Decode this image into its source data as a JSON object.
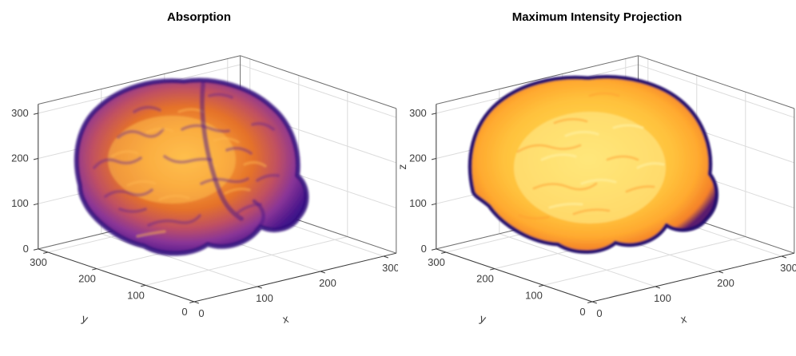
{
  "figure": {
    "background": "#ffffff"
  },
  "axes": {
    "lim": [
      0,
      320
    ],
    "grid_color": "#dcdcdc",
    "box_color": "#6e6e6e",
    "axis_color": "#3c3c3c",
    "text_color": "#3c3c3c",
    "tick_font_size": 13,
    "label_font_size": 14
  },
  "chart_data": [
    {
      "type": "3d-volume-rendering",
      "title": "Absorption",
      "xlabel": "x",
      "ylabel": "y",
      "zlabel": "",
      "x_ticks": [
        0,
        100,
        200,
        300
      ],
      "y_ticks": [
        0,
        100,
        200,
        300
      ],
      "z_ticks": [
        0,
        100,
        200,
        300
      ],
      "xlim": [
        0,
        320
      ],
      "ylim": [
        0,
        320
      ],
      "zlim": [
        0,
        320
      ],
      "grid": true,
      "content": "Human brain MRI volume rendered with an absorption transfer function: warm orange interior, violet-blue surface boundary, visible cortical folds and cerebellum",
      "colormap": [
        "#41128a",
        "#8a3597",
        "#bf4f63",
        "#e4712a",
        "#f69a33",
        "#fdbc49"
      ]
    },
    {
      "type": "3d-volume-rendering",
      "title": "Maximum Intensity Projection",
      "xlabel": "x",
      "ylabel": "y",
      "zlabel": "z",
      "x_ticks": [
        0,
        100,
        200,
        300
      ],
      "y_ticks": [
        0,
        100,
        200,
        300
      ],
      "z_ticks": [
        0,
        100,
        200,
        300
      ],
      "xlim": [
        0,
        320
      ],
      "ylim": [
        0,
        320
      ],
      "zlim": [
        0,
        320
      ],
      "grid": true,
      "content": "Same brain volume rendered as a maximum intensity projection: bright yellow-orange interior with a thin dark violet rim",
      "colormap": [
        "#240d6b",
        "#5a1a6e",
        "#f4812a",
        "#ffc13c",
        "#ffd24a",
        "#ffe263"
      ]
    }
  ],
  "colors": {
    "absorption": {
      "stops": [
        "#fdbc49",
        "#f69a33",
        "#e4712a",
        "#bf4f63",
        "#8a3597",
        "#41128a"
      ],
      "outline": "#31107c",
      "sulci_dark": "#5b2094",
      "sulci_light": "#ffb84d",
      "fissure": "#4a1688",
      "core_glow": "#ffc14f"
    },
    "mip": {
      "stops": [
        "#ffe263",
        "#ffd24a",
        "#ffc13c",
        "#ffa92f",
        "#f4812a",
        "#5a1a6e"
      ],
      "outline": "#240d6b",
      "streak_orange": "#ffa032",
      "streak_light": "#fff0a0",
      "core_glow": "#ffe98a"
    }
  }
}
